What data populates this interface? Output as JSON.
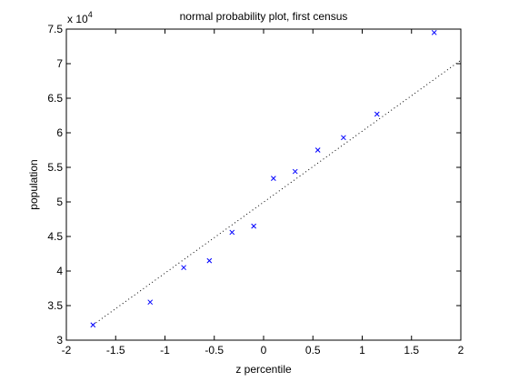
{
  "chart_data": {
    "type": "scatter",
    "title": "normal probability plot, first census",
    "xlabel": "z percentile",
    "ylabel": "population",
    "y_multiplier_label": "x 10",
    "y_multiplier_exponent": "4",
    "xlim": [
      -2,
      2
    ],
    "ylim": [
      3,
      7.5
    ],
    "x_ticks": [
      -2,
      -1.5,
      -1,
      -0.5,
      0,
      0.5,
      1,
      1.5,
      2
    ],
    "x_tick_labels": [
      "-2",
      "-1.5",
      "-1",
      "-0.5",
      "0",
      "0.5",
      "1",
      "1.5",
      "2"
    ],
    "y_ticks": [
      3,
      3.5,
      4,
      4.5,
      5,
      5.5,
      6,
      6.5,
      7,
      7.5
    ],
    "y_tick_labels": [
      "3",
      "3.5",
      "4",
      "4.5",
      "5",
      "5.5",
      "6",
      "6.5",
      "7",
      "7.5"
    ],
    "grid": false,
    "marker": "x",
    "marker_color": "#0000ff",
    "line_color": "#000000",
    "series": [
      {
        "x": [
          -1.73,
          -1.15,
          -0.81,
          -0.55,
          -0.32,
          -0.1,
          0.1,
          0.32,
          0.55,
          0.81,
          1.15,
          1.73
        ],
        "y": [
          3.22,
          3.55,
          4.05,
          4.15,
          4.56,
          4.65,
          5.34,
          5.44,
          5.75,
          5.93,
          6.27,
          7.45
        ]
      }
    ],
    "fit_line": {
      "x": [
        -1.73,
        2.0
      ],
      "y": [
        3.22,
        7.05
      ],
      "style": "dotted"
    }
  }
}
